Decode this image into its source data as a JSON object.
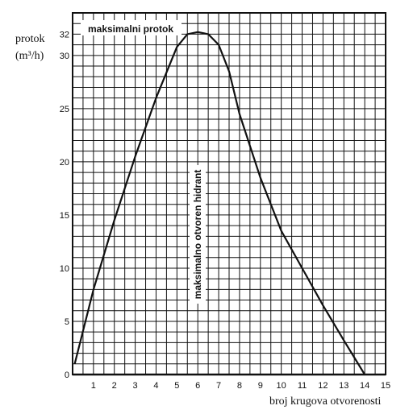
{
  "chart_data": {
    "type": "line",
    "ylabel_line1": "protok",
    "ylabel_line2": "(m³/h)",
    "xlabel": "broj krugova otvorenosti",
    "x_tick_labels": [
      "1",
      "2",
      "3",
      "4",
      "5",
      "6",
      "7",
      "8",
      "9",
      "10",
      "11",
      "12",
      "13",
      "14",
      "15"
    ],
    "y_tick_labels": [
      {
        "value": 0,
        "label": "0"
      },
      {
        "value": 5,
        "label": "5"
      },
      {
        "value": 10,
        "label": "10"
      },
      {
        "value": 15,
        "label": "15"
      },
      {
        "value": 20,
        "label": "20"
      },
      {
        "value": 25,
        "label": "25"
      },
      {
        "value": 30,
        "label": "30"
      },
      {
        "value": 32,
        "label": "32"
      }
    ],
    "xlim": [
      0,
      15
    ],
    "ylim": [
      0,
      34
    ],
    "grid": true,
    "grid_step_x": 0.5,
    "grid_step_y": 1,
    "annotations": {
      "max_flow": "maksimalni protok",
      "max_open": "maksimalno otvoren hidrant"
    },
    "max_flow_value": 32,
    "max_open_turns": 6,
    "series": [
      {
        "x": [
          0.1,
          1,
          2,
          3,
          4,
          5,
          5.5,
          6,
          6.5,
          7,
          7.5,
          8,
          9,
          10,
          11,
          12,
          13,
          14
        ],
        "y": [
          1,
          8,
          14.5,
          20.5,
          26,
          30.8,
          32,
          32.2,
          32,
          31,
          28.5,
          24.5,
          18.5,
          13.5,
          10,
          6.5,
          3.2,
          0
        ]
      }
    ],
    "colors": {
      "line": "#111111",
      "grid": "#111111",
      "background": "#ffffff"
    }
  }
}
